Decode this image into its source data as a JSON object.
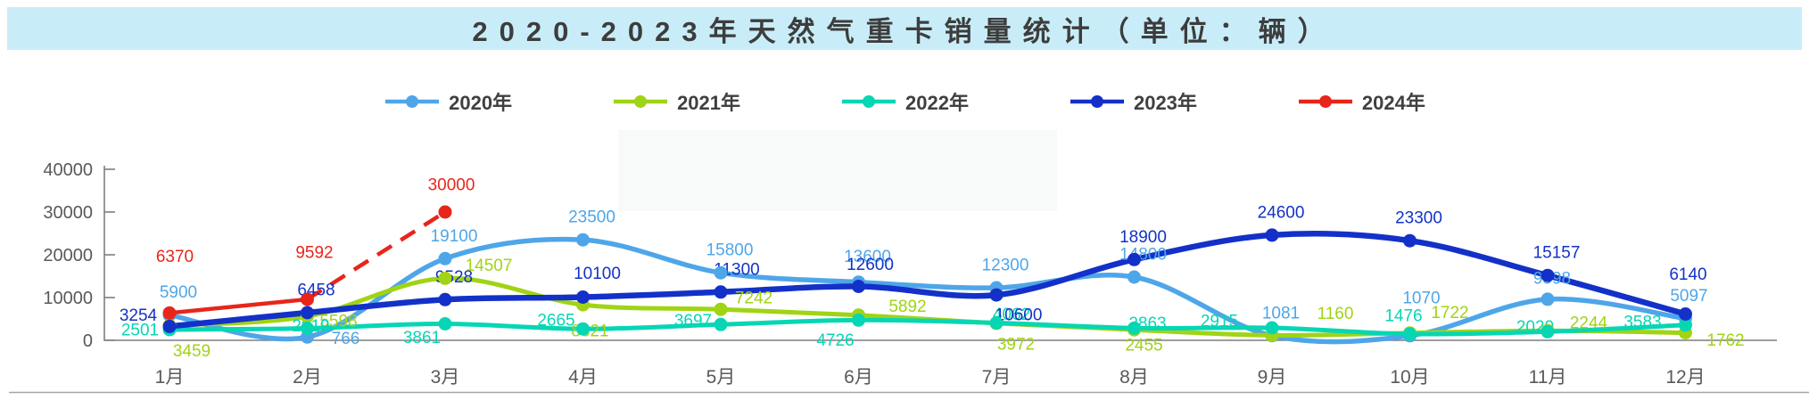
{
  "title": {
    "text": "2020-2023年天然气重卡销量统计（单位：辆）"
  },
  "colors": {
    "title_band_bg": "#c9edf8",
    "axis_line": "#7f7f7f",
    "axis_label": "#595959",
    "bottom_rule": "#a6a6a6",
    "watermark_patch": "#f8f9f9"
  },
  "chart_data": {
    "type": "line",
    "title": "2020-2023年天然气重卡销量统计（单位：辆）",
    "categories": [
      "1月",
      "2月",
      "3月",
      "4月",
      "5月",
      "6月",
      "7月",
      "8月",
      "9月",
      "10月",
      "11月",
      "12月"
    ],
    "series": [
      {
        "name": "2020年",
        "color": "#4ea6e9",
        "line": "solid",
        "values": [
          5900,
          766,
          19100,
          23500,
          15800,
          13600,
          12300,
          14800,
          1081,
          1070,
          9598,
          5097
        ]
      },
      {
        "name": "2021年",
        "color": "#a0d414",
        "line": "solid",
        "values": [
          3459,
          5598,
          14507,
          8321,
          7242,
          5892,
          3972,
          2455,
          1160,
          1722,
          2244,
          1762
        ]
      },
      {
        "name": "2022年",
        "color": "#06d6b4",
        "line": "solid",
        "values": [
          2501,
          2819,
          3861,
          2665,
          3697,
          4726,
          4062,
          2863,
          2915,
          1476,
          2020,
          3583
        ]
      },
      {
        "name": "2023年",
        "color": "#1331c8",
        "line": "solid",
        "values": [
          3254,
          6458,
          9528,
          10100,
          11300,
          12600,
          10600,
          18900,
          24600,
          23300,
          15157,
          6140
        ]
      },
      {
        "name": "2024年",
        "color": "#e8251a",
        "line": "dashed-forecast",
        "values": [
          6370,
          9592,
          30000,
          null,
          null,
          null,
          null,
          null,
          null,
          null,
          null,
          null
        ]
      }
    ],
    "xlabel": "",
    "ylabel": "",
    "ylim": [
      0,
      40000
    ],
    "yticks": [
      0,
      10000,
      20000,
      30000,
      40000
    ],
    "grid": false,
    "legend_position": "top",
    "data_labels_shown": true
  }
}
